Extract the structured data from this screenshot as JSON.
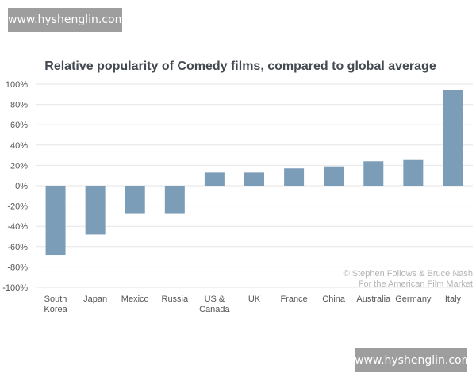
{
  "watermark_top": "www.hyshenglin.com",
  "watermark_bottom": "www.hyshenglin.com",
  "chart_data": {
    "type": "bar",
    "title": "Relative popularity of Comedy films, compared to global average",
    "categories": [
      [
        "South",
        "Korea"
      ],
      [
        "Japan"
      ],
      [
        "Mexico"
      ],
      [
        "Russia"
      ],
      [
        "US &",
        "Canada"
      ],
      [
        "UK"
      ],
      [
        "France"
      ],
      [
        "China"
      ],
      [
        "Australia"
      ],
      [
        "Germany"
      ],
      [
        "Italy"
      ]
    ],
    "values": [
      -68,
      -48,
      -27,
      -27,
      13,
      13,
      17,
      19,
      24,
      26,
      94
    ],
    "ylim": [
      -100,
      100
    ],
    "yticks": [
      100,
      80,
      60,
      40,
      20,
      0,
      -20,
      -40,
      -60,
      -80,
      -100
    ],
    "ytick_labels": [
      "100%",
      "80%",
      "60%",
      "40%",
      "20%",
      "0%",
      "-20%",
      "-40%",
      "-60%",
      "-80%",
      "-100%"
    ],
    "xlabel": "",
    "ylabel": "",
    "bar_color": "#7c9db8",
    "grid": true,
    "credit": [
      "© Stephen Follows & Bruce Nash",
      "For the American Film Market"
    ]
  }
}
